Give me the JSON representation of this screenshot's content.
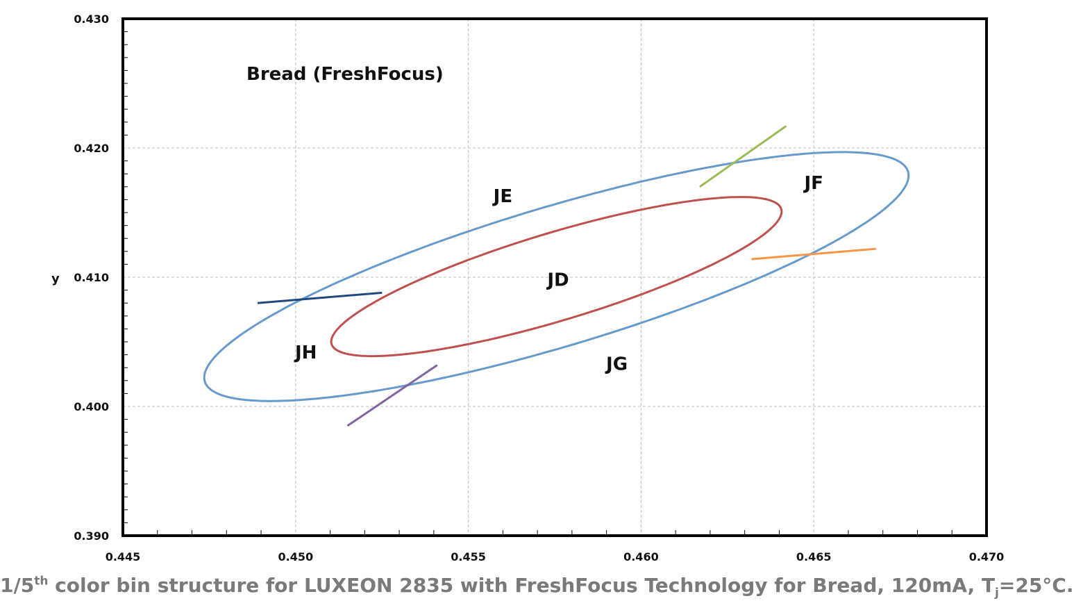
{
  "chart_data": {
    "type": "scatter",
    "title": "",
    "xlabel": "",
    "ylabel": "y",
    "xlim": [
      0.445,
      0.47
    ],
    "ylim": [
      0.39,
      0.43
    ],
    "xticks": [
      "0.445",
      "0.450",
      "0.455",
      "0.460",
      "0.465",
      "0.470"
    ],
    "yticks": [
      "0.390",
      "0.400",
      "0.410",
      "0.420",
      "0.430"
    ],
    "grid": true,
    "annotation": "Bread (FreshFocus)",
    "outer_ellipse": {
      "center": [
        0.45755,
        0.41005
      ],
      "semi_major_a": 0.01335,
      "semi_minor_b": 0.0043,
      "angle_deg": 43,
      "color": "#6699cc"
    },
    "inner_ellipse": {
      "center": [
        0.45755,
        0.41005
      ],
      "semi_major_a": 0.00855,
      "semi_minor_b": 0.0027,
      "angle_deg": 43,
      "color": "#c0504d"
    },
    "divider_lines": [
      {
        "name": "JE-JF",
        "x": [
          0.4617,
          0.4642
        ],
        "y": [
          0.417,
          0.4217
        ],
        "color": "#9bbb59"
      },
      {
        "name": "JF-JG",
        "x": [
          0.4632,
          0.4668
        ],
        "y": [
          0.4114,
          0.4122
        ],
        "color": "#f79646"
      },
      {
        "name": "JG-JH",
        "x": [
          0.4541,
          0.4515
        ],
        "y": [
          0.4032,
          0.3985
        ],
        "color": "#8064a2"
      },
      {
        "name": "JH-JE",
        "x": [
          0.4525,
          0.4489
        ],
        "y": [
          0.4088,
          0.408
        ],
        "color": "#1f497d"
      }
    ],
    "regions": [
      {
        "label": "JD",
        "x": 0.4576,
        "y": 0.4098
      },
      {
        "label": "JE",
        "x": 0.456,
        "y": 0.4163
      },
      {
        "label": "JF",
        "x": 0.465,
        "y": 0.4173
      },
      {
        "label": "JG",
        "x": 0.4593,
        "y": 0.4033
      },
      {
        "label": "JH",
        "x": 0.4503,
        "y": 0.4042
      }
    ]
  },
  "caption": {
    "part1": "1/5",
    "sup": "th",
    "part2": " color bin structure for LUXEON 2835 with FreshFocus Technology for Bread, 120mA, T",
    "sub": "j",
    "part3": "=25°C."
  }
}
